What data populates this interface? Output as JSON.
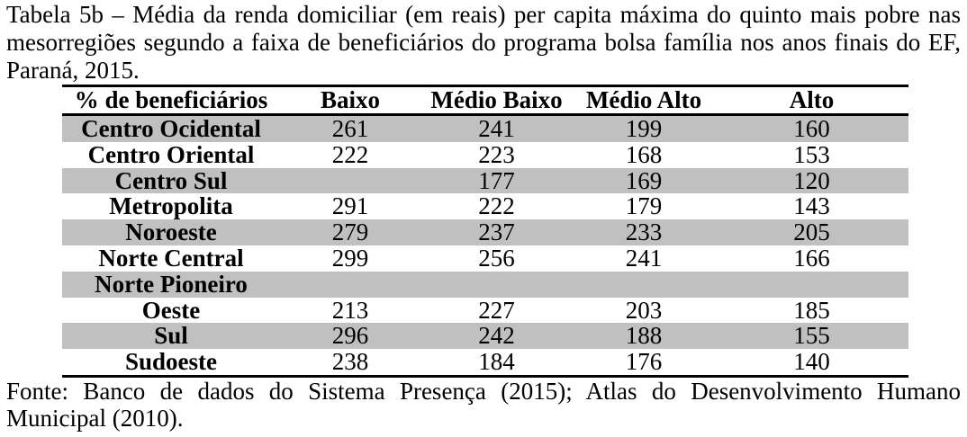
{
  "document": {
    "caption_lines": [
      "Tabela 5b – Média da renda domiciliar (em reais) per capita máxima do quinto mais pobre nas",
      "mesorregiões segundo a faixa de beneficiários do programa bolsa família nos anos finais do EF,",
      "Paraná, 2015."
    ],
    "source_lines": [
      "Fonte: Banco de dados do Sistema Presença (2015); Atlas do Desenvolvimento Humano",
      "Municipal (2010)."
    ]
  },
  "table": {
    "shade_color": "#c0c0c0",
    "columns": [
      "% de beneficiários",
      "Baixo",
      "Médio Baixo",
      "Médio Alto",
      "Alto"
    ],
    "rows": [
      {
        "name": "Centro Ocidental",
        "values": [
          "261",
          "241",
          "199",
          "160"
        ],
        "shaded": true
      },
      {
        "name": "Centro Oriental",
        "values": [
          "222",
          "223",
          "168",
          "153"
        ],
        "shaded": false
      },
      {
        "name": "Centro Sul",
        "values": [
          "",
          "177",
          "169",
          "120"
        ],
        "shaded": true
      },
      {
        "name": "Metropolita",
        "values": [
          "291",
          "222",
          "179",
          "143"
        ],
        "shaded": false
      },
      {
        "name": "Noroeste",
        "values": [
          "279",
          "237",
          "233",
          "205"
        ],
        "shaded": true
      },
      {
        "name": "Norte Central",
        "values": [
          "299",
          "256",
          "241",
          "166"
        ],
        "shaded": false
      },
      {
        "name": "Norte Pioneiro",
        "values": [
          "",
          "",
          "",
          ""
        ],
        "shaded": true
      },
      {
        "name": "Oeste",
        "values": [
          "213",
          "227",
          "203",
          "185"
        ],
        "shaded": false
      },
      {
        "name": "Sul",
        "values": [
          "296",
          "242",
          "188",
          "155"
        ],
        "shaded": true
      },
      {
        "name": "Sudoeste",
        "values": [
          "238",
          "184",
          "176",
          "140"
        ],
        "shaded": false
      }
    ]
  },
  "chart_data": {
    "type": "table",
    "title": "Tabela 5b – Média da renda domiciliar (em reais) per capita máxima do quinto mais pobre nas mesorregiões segundo a faixa de beneficiários do programa bolsa família nos anos finais do EF, Paraná, 2015.",
    "source": "Fonte: Banco de dados do Sistema Presença (2015); Atlas do Desenvolvimento Humano Municipal (2010).",
    "columns": [
      "% de beneficiários",
      "Baixo",
      "Médio Baixo",
      "Médio Alto",
      "Alto"
    ],
    "categories": [
      "Centro Ocidental",
      "Centro Oriental",
      "Centro Sul",
      "Metropolita",
      "Noroeste",
      "Norte Central",
      "Norte Pioneiro",
      "Oeste",
      "Sul",
      "Sudoeste"
    ],
    "series": [
      {
        "name": "Baixo",
        "values": [
          261,
          222,
          null,
          291,
          279,
          299,
          null,
          213,
          296,
          238
        ]
      },
      {
        "name": "Médio Baixo",
        "values": [
          241,
          223,
          177,
          222,
          237,
          256,
          null,
          227,
          242,
          184
        ]
      },
      {
        "name": "Médio Alto",
        "values": [
          199,
          168,
          169,
          179,
          233,
          241,
          null,
          203,
          188,
          176
        ]
      },
      {
        "name": "Alto",
        "values": [
          160,
          153,
          120,
          143,
          205,
          166,
          null,
          185,
          155,
          140
        ]
      }
    ]
  }
}
